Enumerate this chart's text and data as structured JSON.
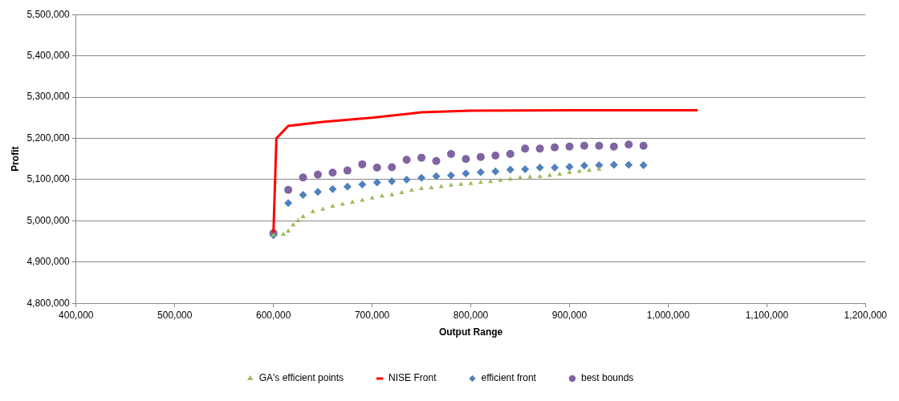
{
  "chart_data": {
    "type": "scatter",
    "xlabel": "Output Range",
    "ylabel": "Profit",
    "grid": "y",
    "legend": "bottom",
    "xlim": [
      400000,
      1200000
    ],
    "ylim": [
      4800000,
      5500000
    ],
    "xticks": [
      {
        "value": 400000,
        "label": "400,000"
      },
      {
        "value": 500000,
        "label": "500,000"
      },
      {
        "value": 600000,
        "label": "600,000"
      },
      {
        "value": 700000,
        "label": "700,000"
      },
      {
        "value": 800000,
        "label": "800,000"
      },
      {
        "value": 900000,
        "label": "900,000"
      },
      {
        "value": 1000000,
        "label": "1,000,000"
      },
      {
        "value": 1100000,
        "label": "1,100,000"
      },
      {
        "value": 1200000,
        "label": "1,200,000"
      }
    ],
    "yticks": [
      {
        "value": 4800000,
        "label": "4,800,000"
      },
      {
        "value": 4900000,
        "label": "4,900,000"
      },
      {
        "value": 5000000,
        "label": "5,000,000"
      },
      {
        "value": 5100000,
        "label": "5,100,000"
      },
      {
        "value": 5200000,
        "label": "5,200,000"
      },
      {
        "value": 5300000,
        "label": "5,300,000"
      },
      {
        "value": 5400000,
        "label": "5,400,000"
      },
      {
        "value": 5500000,
        "label": "5,500,000"
      }
    ],
    "series": [
      {
        "name": "GA's efficient points",
        "marker": "triangle",
        "color": "#9bbb59",
        "x": [
          600000,
          610000,
          615000,
          620000,
          625000,
          630000,
          640000,
          650000,
          660000,
          670000,
          680000,
          690000,
          700000,
          710000,
          720000,
          730000,
          740000,
          750000,
          760000,
          770000,
          780000,
          790000,
          800000,
          810000,
          820000,
          830000,
          840000,
          850000,
          860000,
          870000,
          880000,
          890000,
          900000,
          910000,
          920000,
          930000
        ],
        "values": [
          4965000,
          4967000,
          4975000,
          4990000,
          5000000,
          5010000,
          5022000,
          5028000,
          5035000,
          5040000,
          5045000,
          5050000,
          5055000,
          5060000,
          5063000,
          5068000,
          5074000,
          5078000,
          5080000,
          5083000,
          5086000,
          5088000,
          5090000,
          5093000,
          5095000,
          5098000,
          5101000,
          5104000,
          5106000,
          5107000,
          5110000,
          5113000,
          5117000,
          5120000,
          5122000,
          5125000
        ]
      },
      {
        "name": "NISE Front",
        "type": "line",
        "marker": "none",
        "line_style": "solid",
        "color": "#ff0000",
        "x": [
          600000,
          603000,
          615000,
          650000,
          700000,
          750000,
          800000,
          900000,
          1030000
        ],
        "values": [
          4970000,
          5200000,
          5230000,
          5240000,
          5250000,
          5263000,
          5267000,
          5268000,
          5268000
        ]
      },
      {
        "name": "efficient front",
        "marker": "diamond",
        "color": "#4f81bd",
        "x": [
          600000,
          615000,
          630000,
          645000,
          660000,
          675000,
          690000,
          705000,
          720000,
          735000,
          750000,
          765000,
          780000,
          795000,
          810000,
          825000,
          840000,
          855000,
          870000,
          885000,
          900000,
          915000,
          930000,
          945000,
          960000,
          975000
        ],
        "values": [
          4965000,
          5043000,
          5063000,
          5070000,
          5077000,
          5083000,
          5088000,
          5093000,
          5096000,
          5100000,
          5104000,
          5108000,
          5110000,
          5115000,
          5118000,
          5120000,
          5124000,
          5125000,
          5129000,
          5129000,
          5131000,
          5134000,
          5135000,
          5136000,
          5136000,
          5135000
        ]
      },
      {
        "name": "best bounds",
        "marker": "circle",
        "color": "#8064a2",
        "x": [
          600000,
          615000,
          630000,
          645000,
          660000,
          675000,
          690000,
          705000,
          720000,
          735000,
          750000,
          765000,
          780000,
          795000,
          810000,
          825000,
          840000,
          855000,
          870000,
          885000,
          900000,
          915000,
          930000,
          945000,
          960000,
          975000
        ],
        "values": [
          4970000,
          5075000,
          5105000,
          5112000,
          5117000,
          5122000,
          5137000,
          5129000,
          5130000,
          5148000,
          5153000,
          5145000,
          5162000,
          5150000,
          5155000,
          5158000,
          5162000,
          5175000,
          5175000,
          5178000,
          5180000,
          5182000,
          5182000,
          5180000,
          5185000,
          5182000
        ]
      }
    ]
  }
}
